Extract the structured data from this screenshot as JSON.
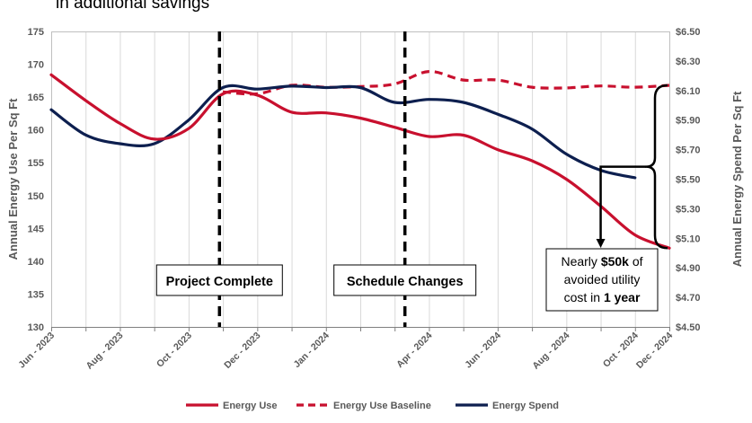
{
  "page": {
    "heading": "in additional savings"
  },
  "colors": {
    "energy_use": "#c8102e",
    "energy_spend": "#0d1f4f",
    "axis_text": "#595959",
    "gridline": "#d9d9d9"
  },
  "chart_data": {
    "type": "line",
    "title": "",
    "ylabel": "Annual Energy Use Per Sq Ft",
    "y2label": "Annual Energy Spend Per Sq Ft",
    "ylim": [
      130,
      175
    ],
    "y_ticks": [
      "130",
      "135",
      "140",
      "145",
      "150",
      "155",
      "160",
      "165",
      "170",
      "175"
    ],
    "y2lim": [
      4.5,
      6.5
    ],
    "y2_ticks": [
      "$4.50",
      "$4.70",
      "$4.90",
      "$5.10",
      "$5.30",
      "$5.50",
      "$5.70",
      "$5.90",
      "$6.10",
      "$6.30",
      "$6.50"
    ],
    "x_ticks": [
      "Jun - 2023",
      "Aug - 2023",
      "Oct - 2023",
      "Dec - 2023",
      "Jan - 2024",
      "Apr - 2024",
      "Jun - 2024",
      "Aug - 2024",
      "Oct - 2024",
      "Dec - 2024"
    ],
    "grid": "vertical",
    "legend_position": "bottom",
    "x": [
      0,
      1,
      2,
      3,
      4,
      5,
      6,
      7,
      8,
      9,
      10,
      11,
      12,
      13,
      14,
      15,
      16,
      17,
      18
    ],
    "series": [
      {
        "name": "Energy Use",
        "axis": "left",
        "style": "solid",
        "values": [
          168.4,
          164.5,
          161.0,
          158.6,
          160.2,
          165.5,
          165.3,
          162.7,
          162.6,
          161.8,
          160.4,
          159.0,
          159.2,
          157.0,
          155.3,
          152.5,
          148.4,
          144.0,
          142.0
        ]
      },
      {
        "name": "Energy Use Baseline",
        "axis": "left",
        "style": "dashed",
        "values": [
          null,
          null,
          null,
          null,
          null,
          165.8,
          165.5,
          166.8,
          166.5,
          166.6,
          167.0,
          168.9,
          167.6,
          167.6,
          166.5,
          166.4,
          166.7,
          166.5,
          166.8
        ]
      },
      {
        "name": "Energy Spend",
        "axis": "right",
        "style": "solid",
        "values": [
          5.97,
          5.8,
          5.74,
          5.74,
          5.9,
          6.12,
          6.11,
          6.13,
          6.12,
          6.12,
          6.02,
          6.04,
          6.02,
          5.94,
          5.84,
          5.67,
          5.56,
          5.51,
          null
        ]
      }
    ],
    "markers": [
      {
        "label": "Project Complete",
        "x": 4.9
      },
      {
        "label": "Schedule Changes",
        "x": 10.3
      }
    ],
    "annotation": {
      "parts": [
        {
          "text": "Nearly ",
          "bold": false
        },
        {
          "text": "$50k",
          "bold": true
        },
        {
          "text": " of",
          "bold": false
        },
        {
          "text": "avoided utility",
          "bold": false
        },
        {
          "text": "cost in ",
          "bold": false
        },
        {
          "text": "1 year",
          "bold": true
        }
      ],
      "line_breaks_after": [
        2,
        3
      ]
    }
  }
}
